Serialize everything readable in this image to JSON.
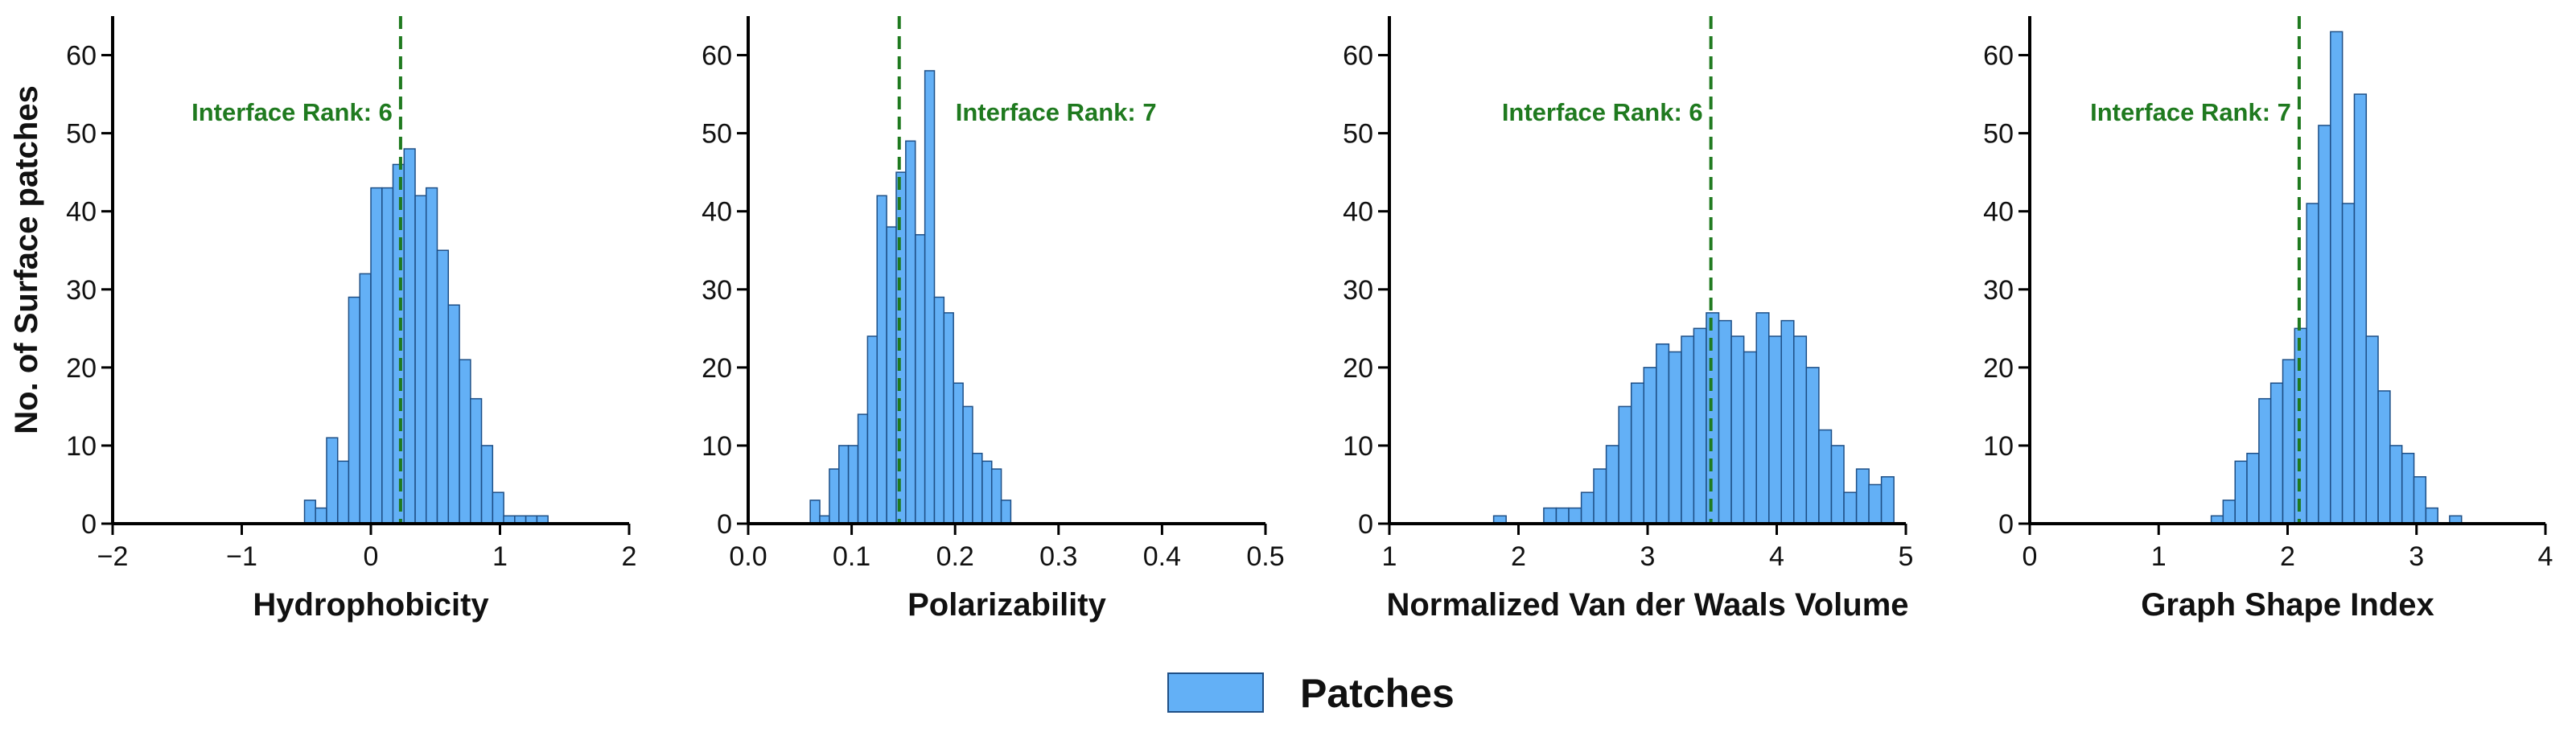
{
  "ylabel": "No. of Surface patches",
  "colors": {
    "bar_fill": "#63B0F6",
    "bar_edge": "#1E4F86",
    "marker": "#1F7A1F",
    "axis": "#000000"
  },
  "legend": {
    "label": "Patches",
    "placement": "bottom-center"
  },
  "chart_data": [
    {
      "type": "bar",
      "xlabel": "Hydrophobicity",
      "xlim": [
        -2,
        2
      ],
      "ylim": [
        0,
        65
      ],
      "xticks": [
        -2,
        -1,
        0,
        1,
        2
      ],
      "yticks": [
        0,
        10,
        20,
        30,
        40,
        50,
        60
      ],
      "bin_width": 0.0857,
      "x": [
        -0.471,
        -0.386,
        -0.3,
        -0.214,
        -0.129,
        -0.043,
        0.043,
        0.129,
        0.214,
        0.3,
        0.386,
        0.471,
        0.557,
        0.643,
        0.729,
        0.814,
        0.9,
        0.986,
        1.071,
        1.157,
        1.243,
        1.329
      ],
      "values": [
        3,
        2,
        11,
        8,
        29,
        32,
        43,
        43,
        46,
        48,
        42,
        43,
        35,
        28,
        21,
        16,
        10,
        4,
        1,
        1,
        1,
        1
      ],
      "marker_x": 0.23,
      "annotation": {
        "text": "Interface Rank: 6",
        "placement": "left-of-line"
      }
    },
    {
      "type": "bar",
      "xlabel": "Polarizability",
      "xlim": [
        0,
        0.5
      ],
      "ylim": [
        0,
        65
      ],
      "xticks": [
        0.0,
        0.1,
        0.2,
        0.3,
        0.4,
        0.5
      ],
      "xtick_labels": [
        "0.0",
        "0.1",
        "0.2",
        "0.3",
        "0.4",
        "0.5"
      ],
      "yticks": [
        0,
        10,
        20,
        30,
        40,
        50,
        60
      ],
      "bin_width": 0.00923,
      "x": [
        0.0646,
        0.0738,
        0.0831,
        0.0923,
        0.1015,
        0.1108,
        0.12,
        0.1292,
        0.1385,
        0.1477,
        0.1569,
        0.1662,
        0.1754,
        0.1846,
        0.1938,
        0.2031,
        0.2123,
        0.2215,
        0.2308,
        0.24,
        0.2492
      ],
      "values": [
        3,
        1,
        7,
        10,
        10,
        14,
        24,
        42,
        38,
        45,
        49,
        37,
        58,
        29,
        27,
        18,
        15,
        9,
        8,
        7,
        3
      ],
      "marker_x": 0.146,
      "annotation": {
        "text": "Interface Rank: 7",
        "placement": "right-of-line"
      }
    },
    {
      "type": "bar",
      "xlabel": "Normalized Van der Waals Volume",
      "xlim": [
        1,
        5
      ],
      "ylim": [
        0,
        65
      ],
      "xticks": [
        1,
        2,
        3,
        4,
        5
      ],
      "yticks": [
        0,
        10,
        20,
        30,
        40,
        50,
        60
      ],
      "bin_width": 0.0969,
      "x": [
        1.856,
        2.244,
        2.341,
        2.438,
        2.535,
        2.631,
        2.728,
        2.825,
        2.922,
        3.019,
        3.116,
        3.213,
        3.31,
        3.406,
        3.503,
        3.6,
        3.697,
        3.794,
        3.891,
        3.988,
        4.084,
        4.181,
        4.278,
        4.375,
        4.472,
        4.569,
        4.666,
        4.762,
        4.859
      ],
      "values": [
        1,
        2,
        2,
        2,
        4,
        7,
        10,
        15,
        18,
        20,
        23,
        22,
        24,
        25,
        27,
        26,
        24,
        22,
        27,
        24,
        26,
        24,
        20,
        12,
        10,
        4,
        7,
        5,
        6
      ],
      "marker_x": 3.49,
      "annotation": {
        "text": "Interface Rank: 6",
        "placement": "left-of-line"
      }
    },
    {
      "type": "bar",
      "xlabel": "Graph Shape Index",
      "xlim": [
        0,
        4
      ],
      "ylim": [
        0,
        65
      ],
      "xticks": [
        0,
        1,
        2,
        3,
        4
      ],
      "yticks": [
        0,
        10,
        20,
        30,
        40,
        50,
        60
      ],
      "bin_width": 0.0925,
      "x": [
        1.454,
        1.546,
        1.639,
        1.731,
        1.824,
        1.916,
        2.009,
        2.101,
        2.194,
        2.286,
        2.379,
        2.471,
        2.564,
        2.656,
        2.749,
        2.841,
        2.934,
        3.026,
        3.119,
        3.303
      ],
      "values": [
        1,
        3,
        8,
        9,
        16,
        18,
        21,
        25,
        41,
        51,
        63,
        41,
        55,
        24,
        17,
        10,
        9,
        6,
        2,
        1
      ],
      "marker_x": 2.09,
      "annotation": {
        "text": "Interface Rank: 7",
        "placement": "left-of-line"
      }
    }
  ]
}
